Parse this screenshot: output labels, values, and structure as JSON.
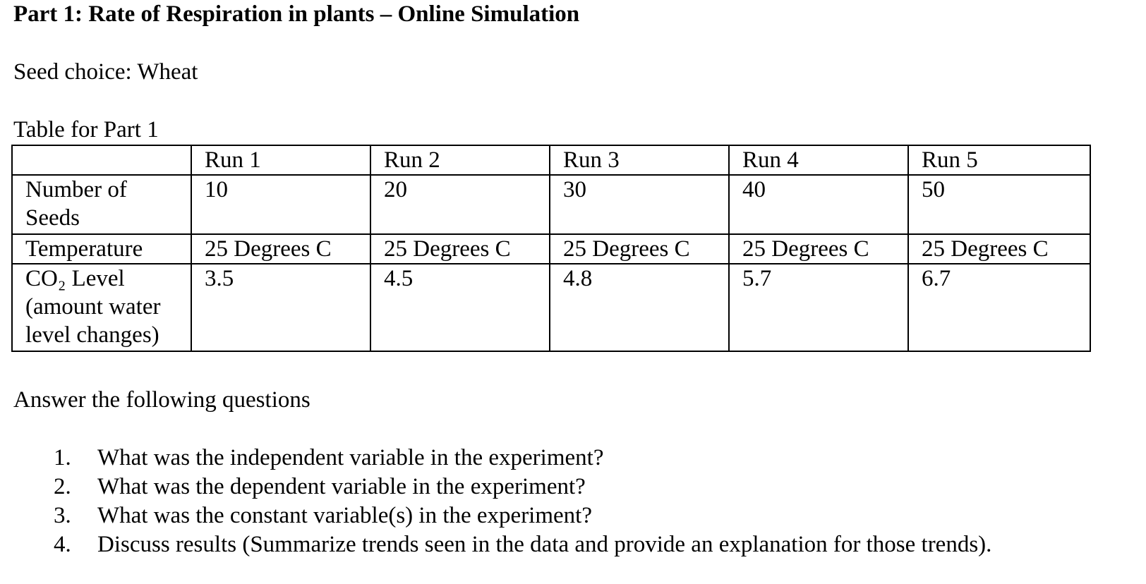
{
  "document": {
    "title": "Part 1: Rate of Respiration in plants – Online Simulation",
    "seed_choice": "Seed choice: Wheat",
    "table_caption": "Table for Part 1",
    "table": {
      "header": [
        "",
        "Run 1",
        "Run 2",
        "Run 3",
        "Run 4",
        "Run 5"
      ],
      "rows": [
        {
          "label": "Number of Seeds",
          "cells": [
            "10",
            "20",
            "30",
            "40",
            "50"
          ]
        },
        {
          "label": "Temperature",
          "cells": [
            "25 Degrees C",
            "25 Degrees C",
            "25 Degrees C",
            "25 Degrees C",
            "25 Degrees C"
          ]
        },
        {
          "label": "CO₂ Level (amount water level changes)",
          "cells": [
            "3.5",
            "4.5",
            "4.8",
            "5.7",
            "6.7"
          ]
        }
      ]
    },
    "answer_heading": "Answer the following questions",
    "questions": [
      {
        "number": "1.",
        "text": "What was the independent variable in the experiment?"
      },
      {
        "number": "2.",
        "text": "What was the dependent variable in the experiment?"
      },
      {
        "number": "3.",
        "text": "What was the constant variable(s) in the experiment?"
      },
      {
        "number": "4.",
        "text": "Discuss results (Summarize trends seen in the data and provide an explanation for those trends)."
      }
    ]
  }
}
